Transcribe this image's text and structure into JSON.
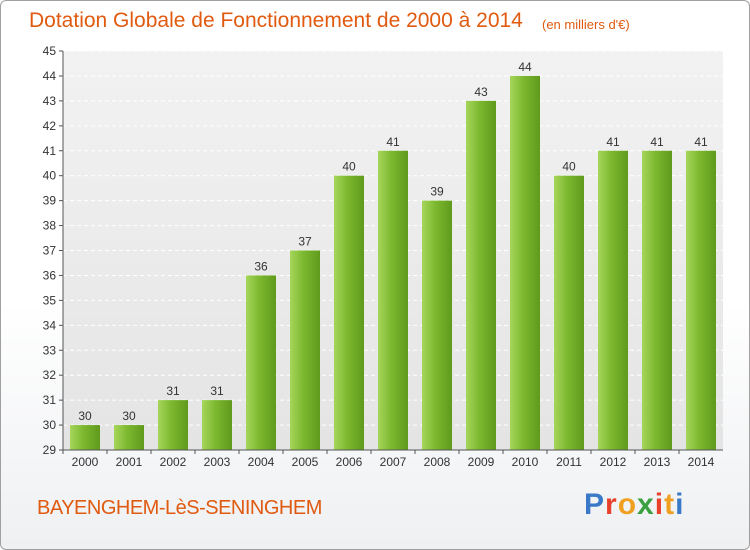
{
  "header": {
    "title": "Dotation Globale de Fonctionnement de 2000 à 2014",
    "unit": "(en milliers d'€)"
  },
  "footer": {
    "commune": "BAYENGHEM-LèS-SENINGHEM",
    "brand_letters": [
      "P",
      "r",
      "o",
      "x",
      "i",
      "t",
      "i"
    ],
    "brand_colors": [
      "#3a78c8",
      "#e8402a",
      "#f0a020",
      "#3aa040",
      "#e8402a",
      "#f0a020",
      "#3a78c8"
    ]
  },
  "chart_data": {
    "type": "bar",
    "categories": [
      "2000",
      "2001",
      "2002",
      "2003",
      "2004",
      "2005",
      "2006",
      "2007",
      "2008",
      "2009",
      "2010",
      "2011",
      "2012",
      "2013",
      "2014"
    ],
    "values": [
      30,
      30,
      31,
      31,
      36,
      37,
      40,
      41,
      39,
      43,
      44,
      40,
      41,
      41,
      41
    ],
    "ylim": [
      29,
      45
    ],
    "yticks": [
      29,
      30,
      31,
      32,
      33,
      34,
      35,
      36,
      37,
      38,
      39,
      40,
      41,
      42,
      43,
      44,
      45
    ],
    "xlabel": "",
    "ylabel": "",
    "grid": true,
    "bar_color": "#7cb82f",
    "bar_color_light": "#a6d65a",
    "bar_color_dark": "#5f9a1c"
  }
}
